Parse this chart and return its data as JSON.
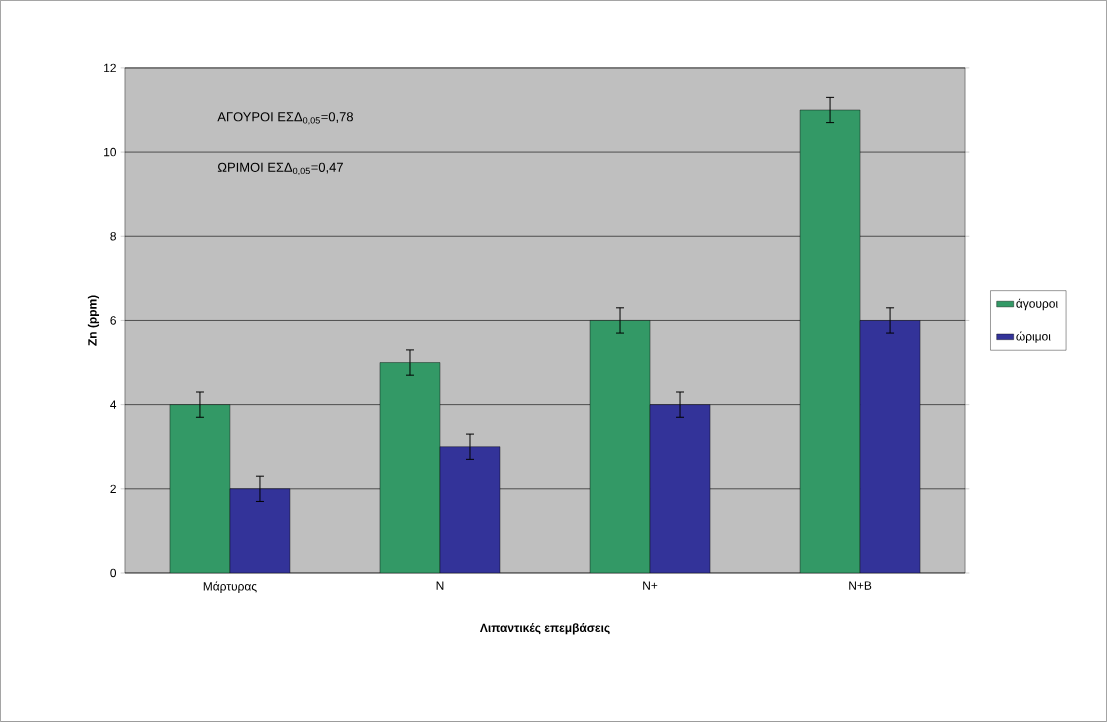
{
  "chart_data": {
    "type": "bar",
    "xlabel": "Λιπαντικές επεμβάσεις",
    "ylabel": "Zn (ppm)",
    "categories": [
      "Μάρτυρας",
      "N",
      "N+",
      "N+B"
    ],
    "series": [
      {
        "name": "άγουροι",
        "color": "#339966",
        "values": [
          4,
          5,
          6,
          11
        ],
        "errors": [
          0.3,
          0.3,
          0.3,
          0.3
        ]
      },
      {
        "name": "ώριμοι",
        "color": "#333399",
        "values": [
          2,
          3,
          4,
          6
        ],
        "errors": [
          0.3,
          0.3,
          0.3,
          0.3
        ]
      }
    ],
    "ylim": [
      0,
      12
    ],
    "yticks": [
      0,
      2,
      4,
      6,
      8,
      10,
      12
    ],
    "grid": "y",
    "legend": "right",
    "annotations": [
      "ΑΓΟΥΡΟΙ ΕΣΔ$_{0,05}$=0,78",
      "ΩΡΙΜΟΙ ΕΣΔ$_{0,05}$=0,47"
    ]
  }
}
